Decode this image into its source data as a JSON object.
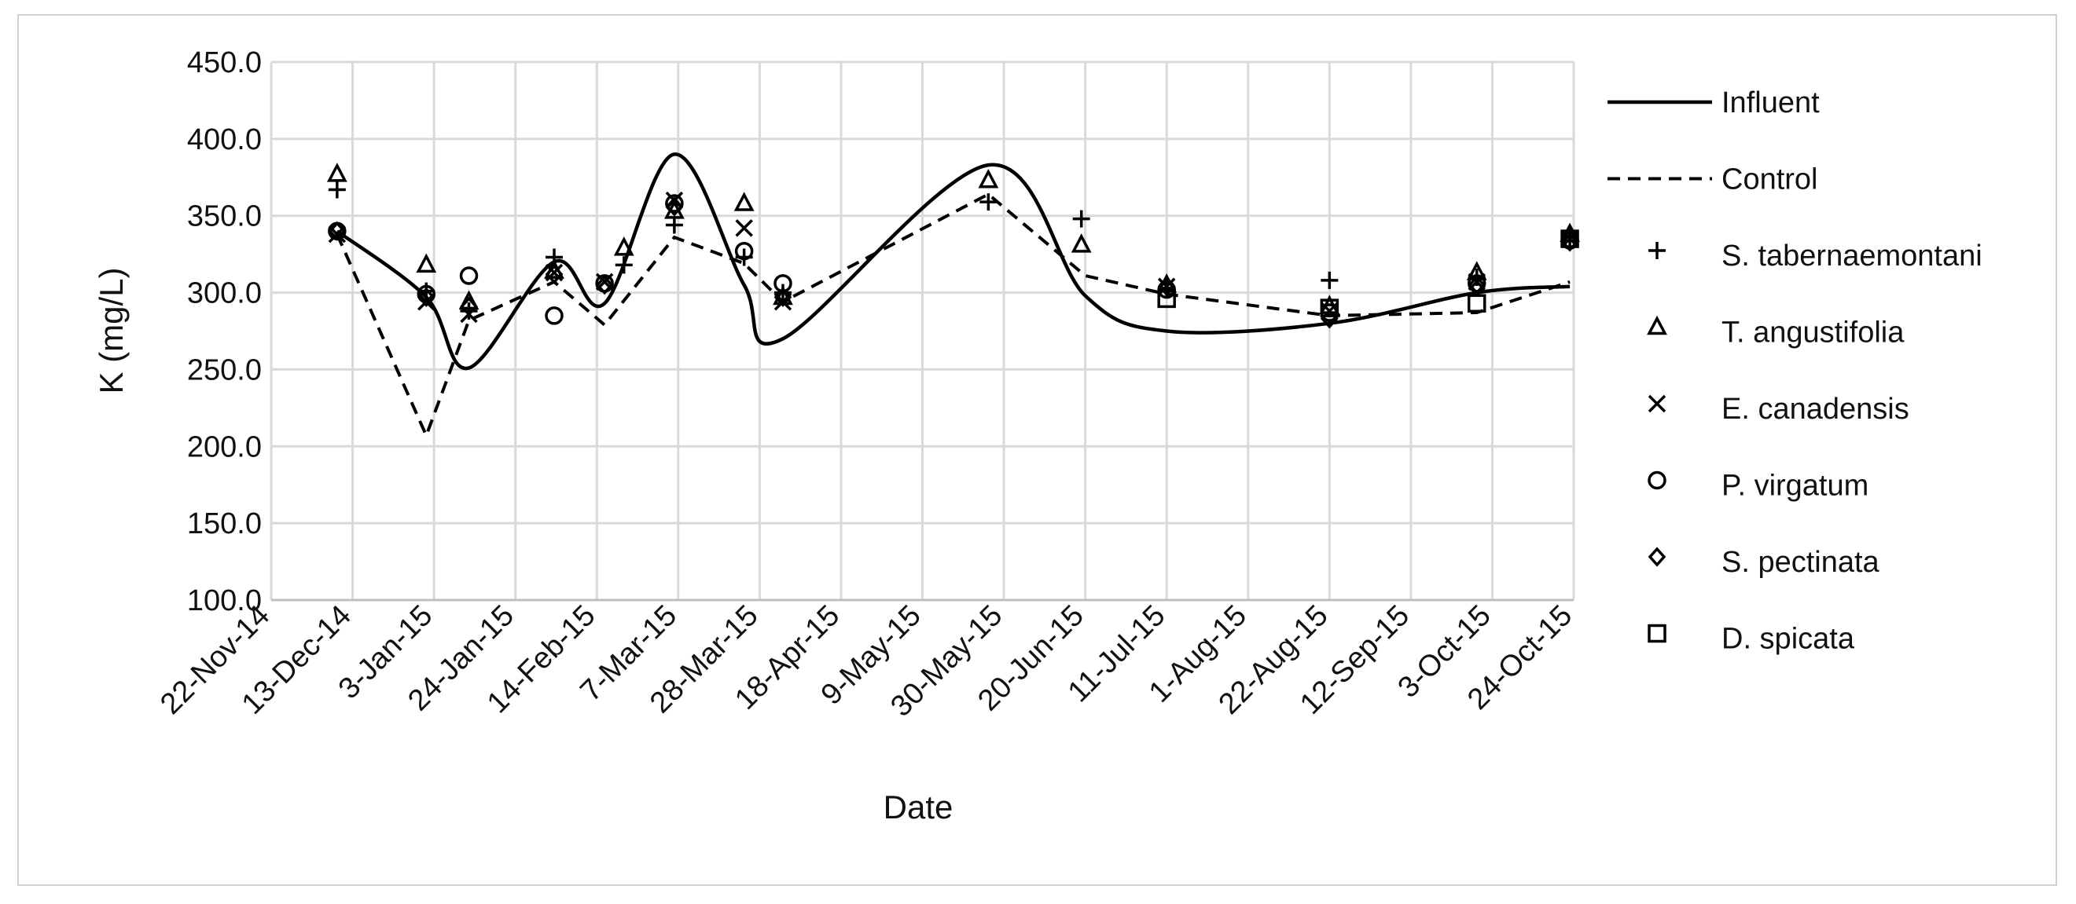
{
  "chart_data": {
    "type": "line",
    "title": "",
    "xlabel": "Date",
    "ylabel": "K (mg/L)",
    "ylim": [
      100,
      450
    ],
    "yticks": [
      100,
      150,
      200,
      250,
      300,
      350,
      400,
      450
    ],
    "ytick_labels": [
      "100.0",
      "150.0",
      "200.0",
      "250.0",
      "300.0",
      "350.0",
      "400.0",
      "450.0"
    ],
    "xlim": [
      "2014-11-22",
      "2015-10-24"
    ],
    "xticks": [
      "2014-11-22",
      "2014-12-13",
      "2015-01-03",
      "2015-01-24",
      "2015-02-14",
      "2015-03-07",
      "2015-03-28",
      "2015-04-18",
      "2015-05-09",
      "2015-05-30",
      "2015-06-20",
      "2015-07-11",
      "2015-08-01",
      "2015-08-22",
      "2015-09-12",
      "2015-10-03",
      "2015-10-24"
    ],
    "xtick_labels": [
      "22-Nov-14",
      "13-Dec-14",
      "3-Jan-15",
      "24-Jan-15",
      "14-Feb-15",
      "7-Mar-15",
      "28-Mar-15",
      "18-Apr-15",
      "9-May-15",
      "30-May-15",
      "20-Jun-15",
      "11-Jul-15",
      "1-Aug-15",
      "22-Aug-15",
      "12-Sep-15",
      "3-Oct-15",
      "24-Oct-15"
    ],
    "grid": true,
    "legend_position": "right",
    "series": [
      {
        "name": "Influent",
        "style": "solid-line",
        "color": "#000000",
        "smooth": true,
        "points": [
          [
            "2014-12-09",
            340
          ],
          [
            "2015-01-01",
            297
          ],
          [
            "2015-01-12",
            251
          ],
          [
            "2015-02-03",
            320
          ],
          [
            "2015-02-16",
            293
          ],
          [
            "2015-03-06",
            390
          ],
          [
            "2015-03-24",
            305
          ],
          [
            "2015-04-03",
            270
          ],
          [
            "2015-05-26",
            383
          ],
          [
            "2015-06-20",
            298
          ],
          [
            "2015-07-11",
            275
          ],
          [
            "2015-08-22",
            280
          ],
          [
            "2015-09-29",
            300
          ],
          [
            "2015-10-23",
            304
          ]
        ]
      },
      {
        "name": "Control",
        "style": "dashed-line",
        "color": "#000000",
        "points": [
          [
            "2014-12-09",
            338
          ],
          [
            "2015-01-01",
            207
          ],
          [
            "2015-01-12",
            282
          ],
          [
            "2015-02-03",
            307
          ],
          [
            "2015-02-16",
            279
          ],
          [
            "2015-03-06",
            336
          ],
          [
            "2015-03-24",
            319
          ],
          [
            "2015-04-03",
            294
          ],
          [
            "2015-05-26",
            364
          ],
          [
            "2015-06-20",
            311
          ],
          [
            "2015-07-11",
            299
          ],
          [
            "2015-08-22",
            285
          ],
          [
            "2015-09-29",
            287
          ],
          [
            "2015-10-23",
            307
          ]
        ]
      },
      {
        "name": "S. tabernaemontani",
        "marker": "plus",
        "points": [
          [
            "2014-12-09",
            367
          ],
          [
            "2015-01-01",
            301
          ],
          [
            "2015-01-12",
            288
          ],
          [
            "2015-02-03",
            323
          ],
          [
            "2015-02-21",
            318
          ],
          [
            "2015-03-06",
            344
          ],
          [
            "2015-03-24",
            323
          ],
          [
            "2015-04-03",
            300
          ],
          [
            "2015-05-26",
            359
          ],
          [
            "2015-06-19",
            348
          ],
          [
            "2015-07-11",
            303
          ],
          [
            "2015-08-22",
            308
          ],
          [
            "2015-09-29",
            310
          ],
          [
            "2015-10-23",
            336
          ]
        ]
      },
      {
        "name": "T. angustifolia",
        "marker": "triangle",
        "points": [
          [
            "2014-12-09",
            377
          ],
          [
            "2015-01-01",
            318
          ],
          [
            "2015-01-12",
            294
          ],
          [
            "2015-02-03",
            314
          ],
          [
            "2015-02-21",
            329
          ],
          [
            "2015-03-06",
            353
          ],
          [
            "2015-03-24",
            358
          ],
          [
            "2015-04-03",
            297
          ],
          [
            "2015-05-26",
            373
          ],
          [
            "2015-06-19",
            331
          ],
          [
            "2015-07-11",
            305
          ],
          [
            "2015-08-22",
            291
          ],
          [
            "2015-09-29",
            313
          ],
          [
            "2015-10-23",
            338
          ]
        ]
      },
      {
        "name": "E. canadensis",
        "marker": "x",
        "points": [
          [
            "2014-12-09",
            338
          ],
          [
            "2015-01-01",
            294
          ],
          [
            "2015-01-12",
            286
          ],
          [
            "2015-02-03",
            313
          ],
          [
            "2015-02-16",
            307
          ],
          [
            "2015-03-06",
            360
          ],
          [
            "2015-03-24",
            342
          ],
          [
            "2015-04-03",
            294
          ],
          [
            "2015-07-11",
            304
          ],
          [
            "2015-08-22",
            288
          ],
          [
            "2015-09-29",
            307
          ],
          [
            "2015-10-23",
            335
          ]
        ]
      },
      {
        "name": "P. virgatum",
        "marker": "circle",
        "points": [
          [
            "2014-12-09",
            340
          ],
          [
            "2015-01-01",
            299
          ],
          [
            "2015-01-12",
            311
          ],
          [
            "2015-02-03",
            285
          ],
          [
            "2015-02-16",
            306
          ],
          [
            "2015-03-06",
            358
          ],
          [
            "2015-03-24",
            327
          ],
          [
            "2015-04-03",
            306
          ],
          [
            "2015-07-11",
            302
          ],
          [
            "2015-08-22",
            287
          ],
          [
            "2015-09-29",
            306
          ],
          [
            "2015-10-23",
            334
          ]
        ]
      },
      {
        "name": "S. pectinata",
        "marker": "diamond",
        "points": [
          [
            "2014-12-09",
            340
          ],
          [
            "2015-01-01",
            297
          ],
          [
            "2015-01-12",
            291
          ],
          [
            "2015-02-03",
            312
          ],
          [
            "2015-02-16",
            305
          ],
          [
            "2015-03-06",
            356
          ],
          [
            "2015-04-03",
            297
          ],
          [
            "2015-07-11",
            304
          ],
          [
            "2015-08-22",
            283
          ],
          [
            "2015-09-29",
            305
          ],
          [
            "2015-10-23",
            333
          ]
        ]
      },
      {
        "name": "D. spicata",
        "marker": "square",
        "points": [
          [
            "2015-07-11",
            296
          ],
          [
            "2015-08-22",
            290
          ],
          [
            "2015-09-29",
            293
          ],
          [
            "2015-10-23",
            335
          ]
        ]
      }
    ]
  }
}
